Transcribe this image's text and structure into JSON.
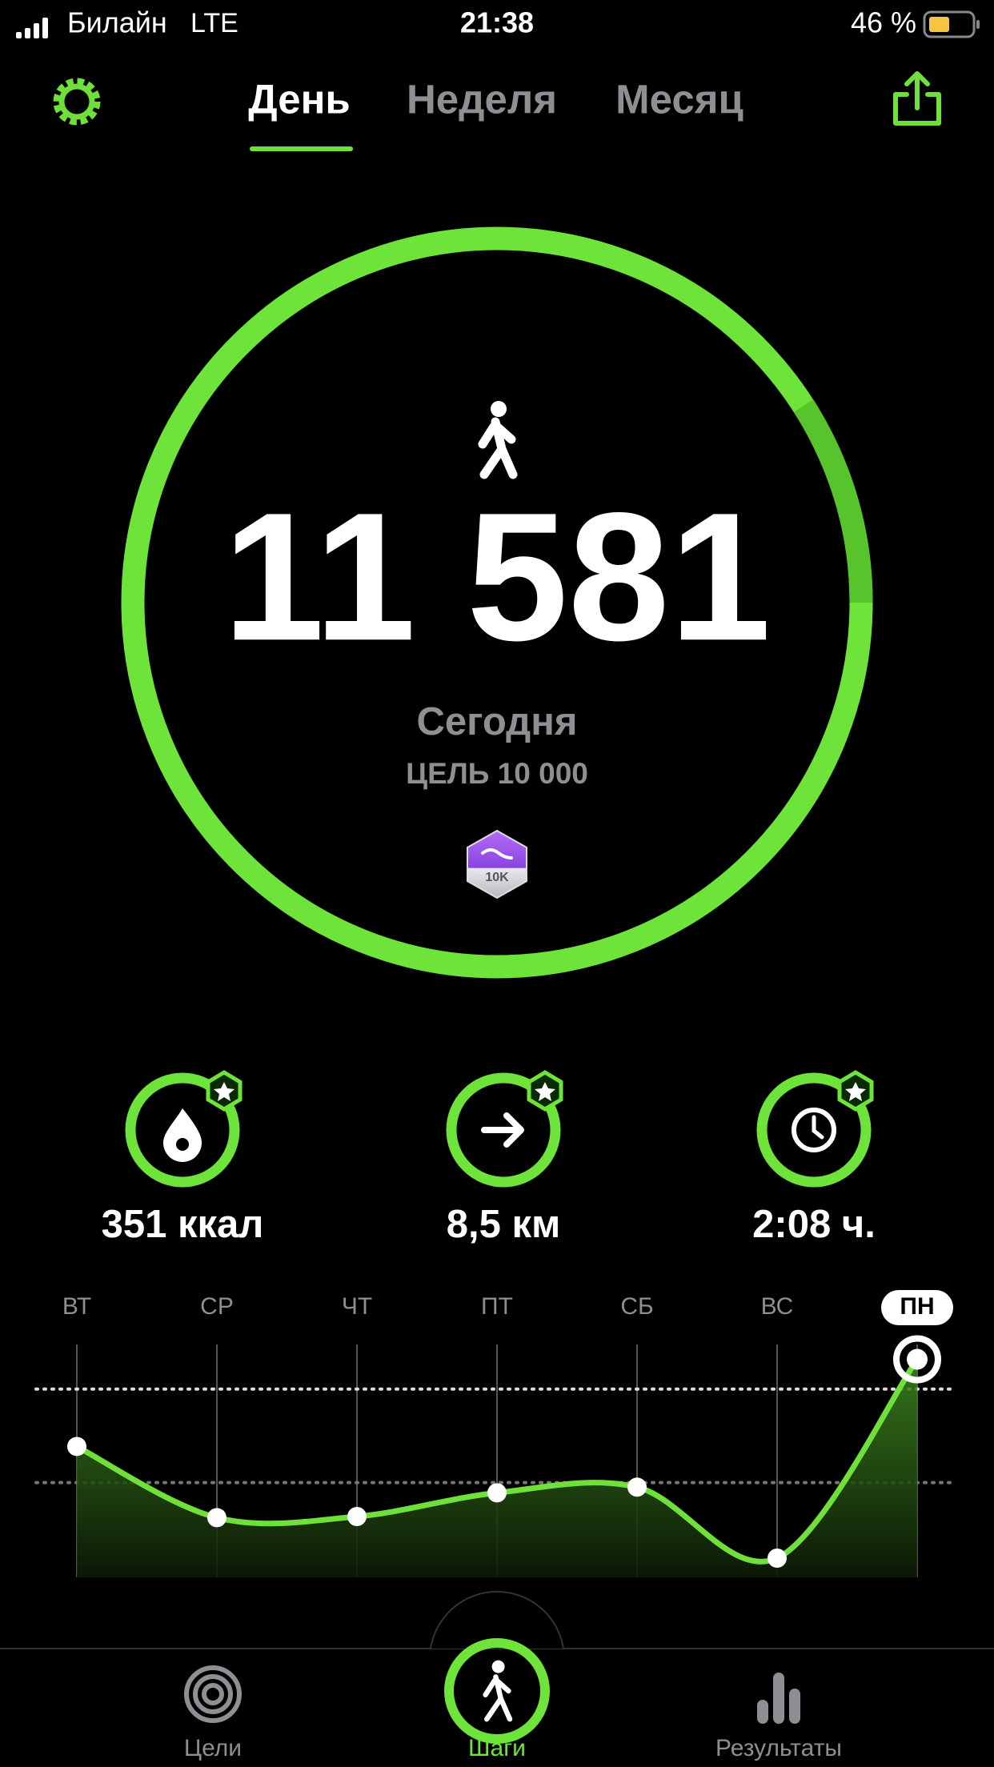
{
  "status_bar": {
    "carrier": "Билайн",
    "network": "LTE",
    "time": "21:38",
    "battery": "46 %"
  },
  "tabs": [
    "День",
    "Неделя",
    "Месяц"
  ],
  "steps": {
    "count": "11 581",
    "label": "Сегодня",
    "goal": "ЦЕЛЬ 10 000",
    "badge": "10K"
  },
  "stats": [
    "351 ккал",
    "8,5 км",
    "2:08 ч."
  ],
  "chart_data": {
    "type": "line",
    "categories": [
      "ВТ",
      "СР",
      "ЧТ",
      "ПТ",
      "СБ",
      "ВС",
      "ПН"
    ],
    "values": [
      6950,
      3170,
      3230,
      4490,
      4790,
      1020,
      11581
    ],
    "ylim": [
      0,
      12580
    ],
    "reference_lines": [
      10000,
      5030
    ],
    "color": "#6fe03a"
  },
  "nav": [
    "Цели",
    "Шаги",
    "Результаты"
  ]
}
